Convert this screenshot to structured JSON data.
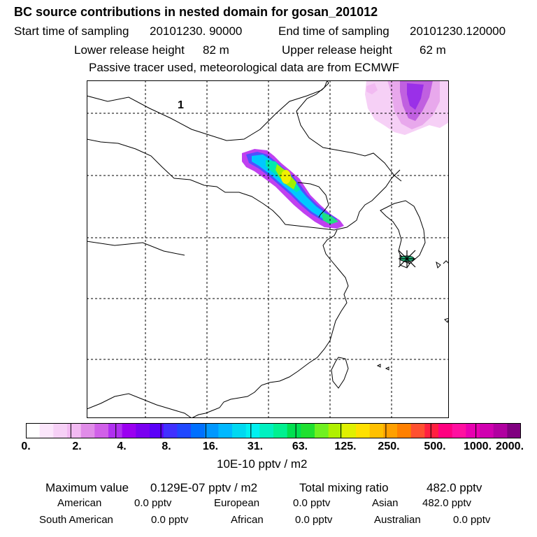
{
  "header": {
    "title": "BC  source contributions in nested domain for gosan_201012",
    "start_label": "Start time of sampling",
    "start_value": "20101230. 90000",
    "end_label": "End time of sampling",
    "end_value": "20101230.120000",
    "lower_label": "Lower release height",
    "lower_value": "82 m",
    "upper_label": "Upper release height",
    "upper_value": "62 m",
    "tracer_note": "Passive tracer used, meteorological data are from ECMWF"
  },
  "map": {
    "panel_label": "1",
    "receptor": "gosan"
  },
  "colorbar": {
    "ticks": [
      "0.",
      "2.",
      "4.",
      "8.",
      "16.",
      "31.",
      "63.",
      "125.",
      "250.",
      "500.",
      "1000.",
      "2000."
    ],
    "unit": "10E-10 pptv / m2",
    "colors": [
      "#ffffff",
      "#fbe6fb",
      "#f6d0f6",
      "#f2baf2",
      "#e08ce8",
      "#d060e8",
      "#b030f0",
      "#9a00f0",
      "#7a00f0",
      "#5a00f8",
      "#4030ff",
      "#2048ff",
      "#0070ff",
      "#0098ff",
      "#00b8ff",
      "#00d8f0",
      "#00f0f0",
      "#00f0c0",
      "#00f090",
      "#00e050",
      "#20e030",
      "#70f020",
      "#b0f000",
      "#e0f000",
      "#ffe000",
      "#ffc000",
      "#ffa000",
      "#ff8000",
      "#ff5030",
      "#ff2040",
      "#ff0080",
      "#ff10a0",
      "#e800b0",
      "#d000b0",
      "#b000a0",
      "#800080"
    ]
  },
  "summary": {
    "max_label": "Maximum value",
    "max_value": "0.129E-07 pptv / m2",
    "total_label": "Total mixing ratio",
    "total_value": "482.0 pptv",
    "regions": [
      {
        "name": "American",
        "value": "0.0 pptv"
      },
      {
        "name": "European",
        "value": "0.0 pptv"
      },
      {
        "name": "Asian",
        "value": "482.0 pptv"
      },
      {
        "name": "South American",
        "value": "0.0 pptv"
      },
      {
        "name": "African",
        "value": "0.0 pptv"
      },
      {
        "name": "Australian",
        "value": "0.0 pptv"
      }
    ]
  }
}
